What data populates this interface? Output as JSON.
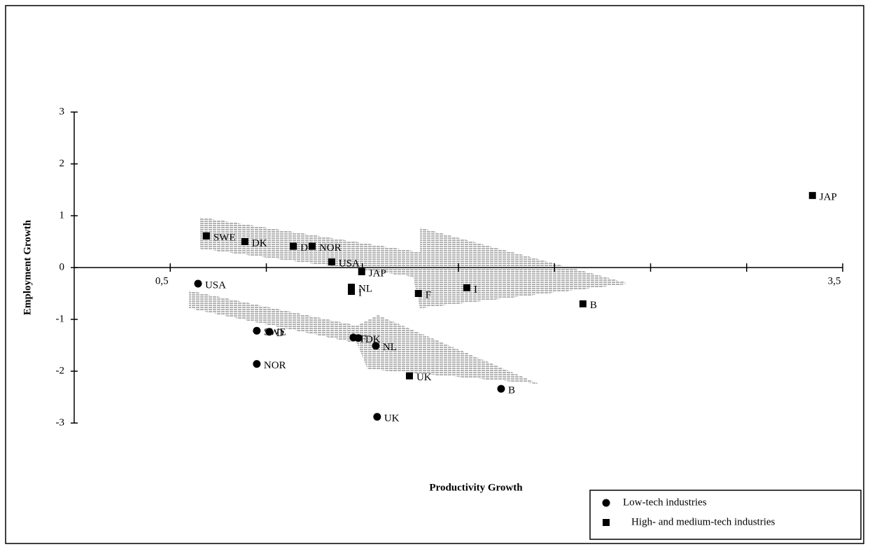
{
  "chart_data": {
    "type": "scatter",
    "x_label": "Productivity Growth",
    "y_label": "Employment Growth",
    "xlim": [
      0.0714,
      3.5
    ],
    "ylim": [
      -3,
      3
    ],
    "xticks": [
      {
        "value": 0.5,
        "label": "0,5"
      },
      {
        "value": 3.5,
        "label": "3,5"
      }
    ],
    "minor_xticks": [
      0.9286,
      1.3571,
      1.7857,
      2.2143,
      2.6429,
      3.0714
    ],
    "yticks": [
      -3,
      -2,
      -1,
      0,
      1,
      2,
      3
    ],
    "legend": "bottom-right",
    "series": [
      {
        "name": "Low-tech industries",
        "marker": "circle",
        "color": "#000000",
        "labels": [
          "USA",
          "SWE",
          "D",
          "NOR",
          "F",
          "DK",
          "NL",
          "B",
          "UK"
        ],
        "x": [
          0.624,
          0.886,
          0.942,
          0.886,
          1.317,
          1.339,
          1.417,
          1.976,
          1.423
        ],
        "values": [
          -0.31,
          -1.22,
          -1.24,
          -1.86,
          -1.35,
          -1.36,
          -1.51,
          -2.34,
          -2.88
        ]
      },
      {
        "name": "High- and medium-tech industries",
        "marker": "square",
        "color": "#000000",
        "labels": [
          "SWE",
          "DK",
          "D",
          "NOR",
          "USA",
          "NL",
          "I",
          "JAP",
          "F",
          "I",
          "B",
          "UK",
          "JAP"
        ],
        "x": [
          0.661,
          0.833,
          1.049,
          1.133,
          1.22,
          1.308,
          1.308,
          1.354,
          1.607,
          1.823,
          2.341,
          1.567,
          3.365
        ],
        "values": [
          0.61,
          0.5,
          0.41,
          0.41,
          0.11,
          -0.38,
          -0.46,
          -0.08,
          -0.5,
          -0.39,
          -0.7,
          -2.09,
          1.39
        ]
      }
    ]
  }
}
